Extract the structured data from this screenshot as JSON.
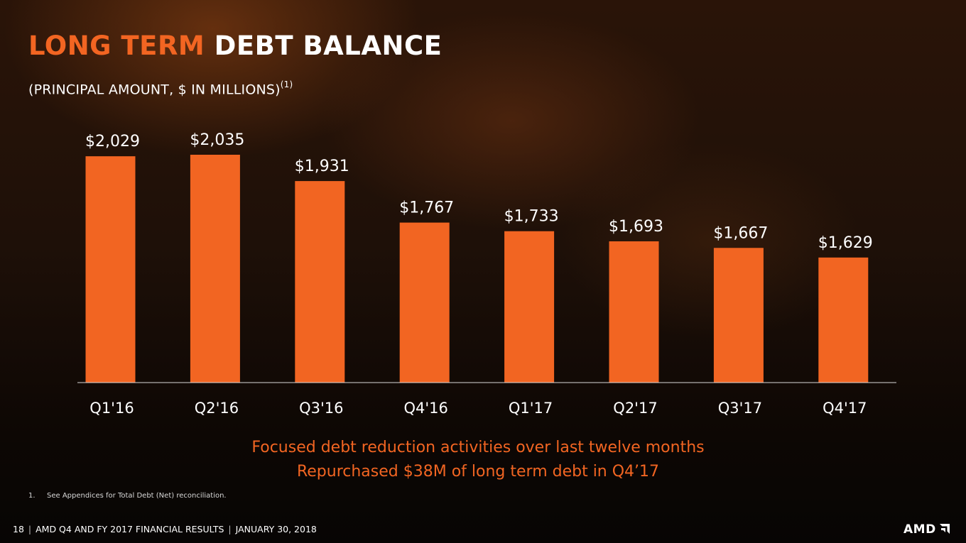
{
  "title": {
    "accent": "LONG TERM",
    "rest": "DEBT BALANCE"
  },
  "subtitle": {
    "text": "(PRINCIPAL AMOUNT, $ IN MILLIONS)",
    "footnote_ref": "(1)"
  },
  "chart_data": {
    "type": "bar",
    "categories": [
      "Q1'16",
      "Q2'16",
      "Q3'16",
      "Q4'16",
      "Q1'17",
      "Q2'17",
      "Q3'17",
      "Q4'17"
    ],
    "values": [
      2029,
      2035,
      1931,
      1767,
      1733,
      1693,
      1667,
      1629
    ],
    "value_labels": [
      "$2,029",
      "$2,035",
      "$1,931",
      "$1,767",
      "$1,733",
      "$1,693",
      "$1,667",
      "$1,629"
    ],
    "bar_color": "#f26522",
    "ylim": [
      0,
      2035
    ],
    "grid": false,
    "legend": "none"
  },
  "taglines": [
    "Focused debt reduction activities over last twelve months",
    "Repurchased $38M of long term debt in Q4’17"
  ],
  "footnote": {
    "number": "1.",
    "text": "See Appendices for Total Debt (Net) reconciliation."
  },
  "footer": {
    "page": "18",
    "deck": "AMD Q4 AND FY 2017 FINANCIAL RESULTS",
    "date": "JANUARY 30, 2018"
  },
  "logo": {
    "text": "AMD",
    "icon": "amd-arrow-icon"
  },
  "colors": {
    "accent": "#f26522",
    "text": "#ffffff"
  }
}
